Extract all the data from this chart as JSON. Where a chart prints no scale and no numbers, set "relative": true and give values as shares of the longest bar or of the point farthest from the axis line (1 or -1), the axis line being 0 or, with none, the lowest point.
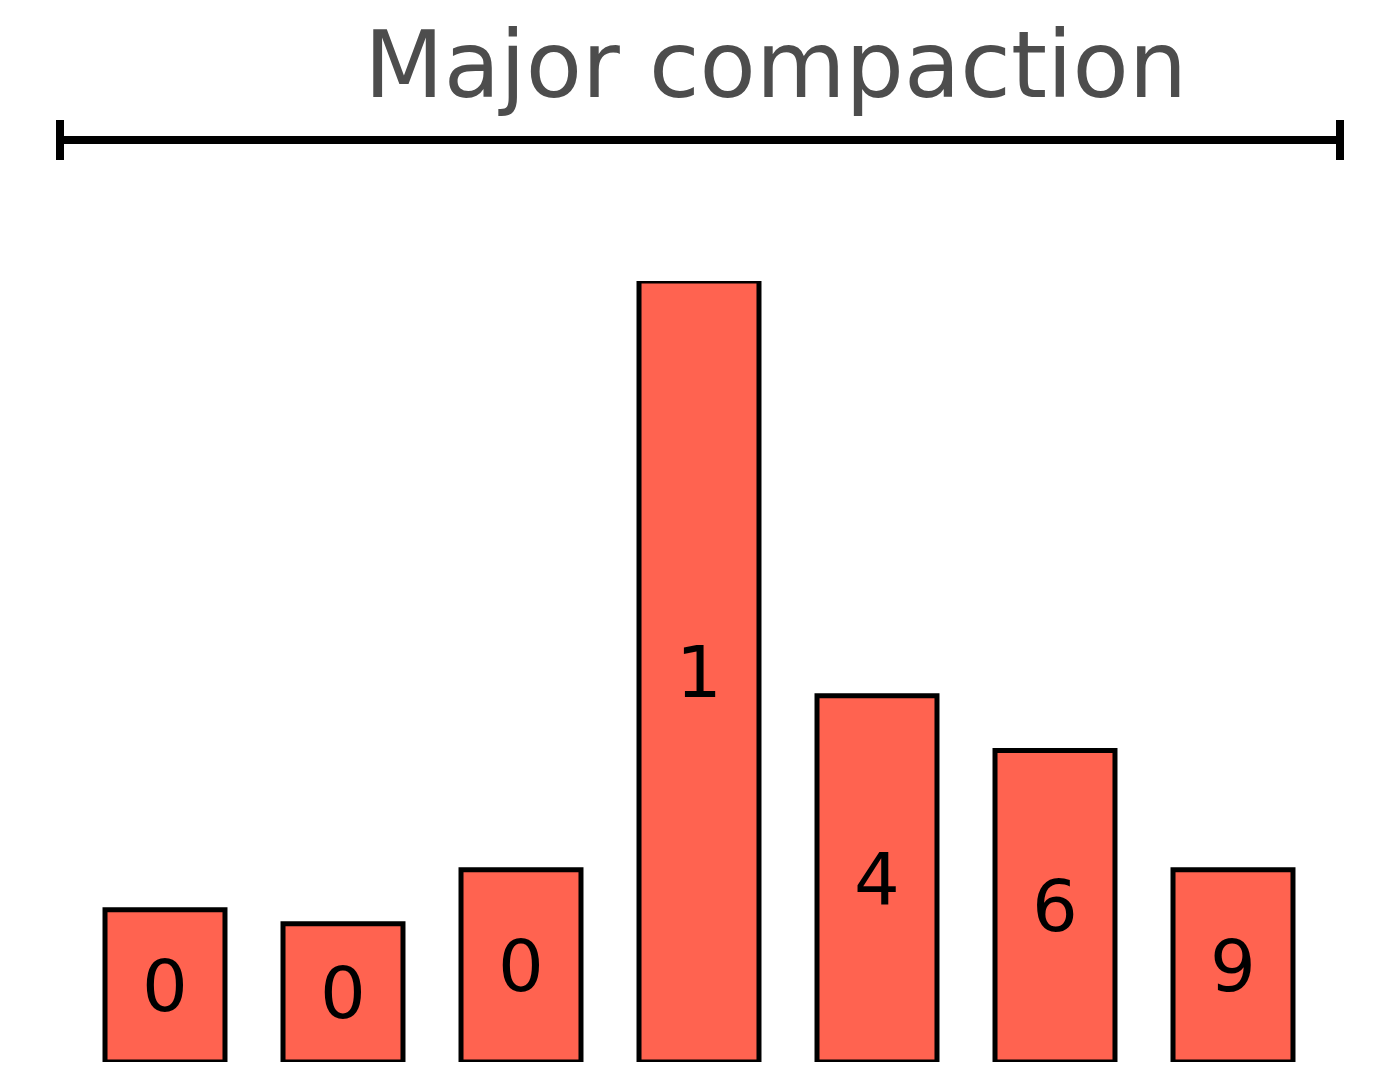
{
  "chart_data": {
    "type": "bar",
    "title": "Major compaction",
    "relative": true,
    "categories": [
      "0",
      "0",
      "0",
      "1",
      "4",
      "6",
      "9"
    ],
    "values": [
      0.195,
      0.177,
      0.246,
      1,
      0.469,
      0.399,
      0.246
    ],
    "color": "#ff6350"
  }
}
